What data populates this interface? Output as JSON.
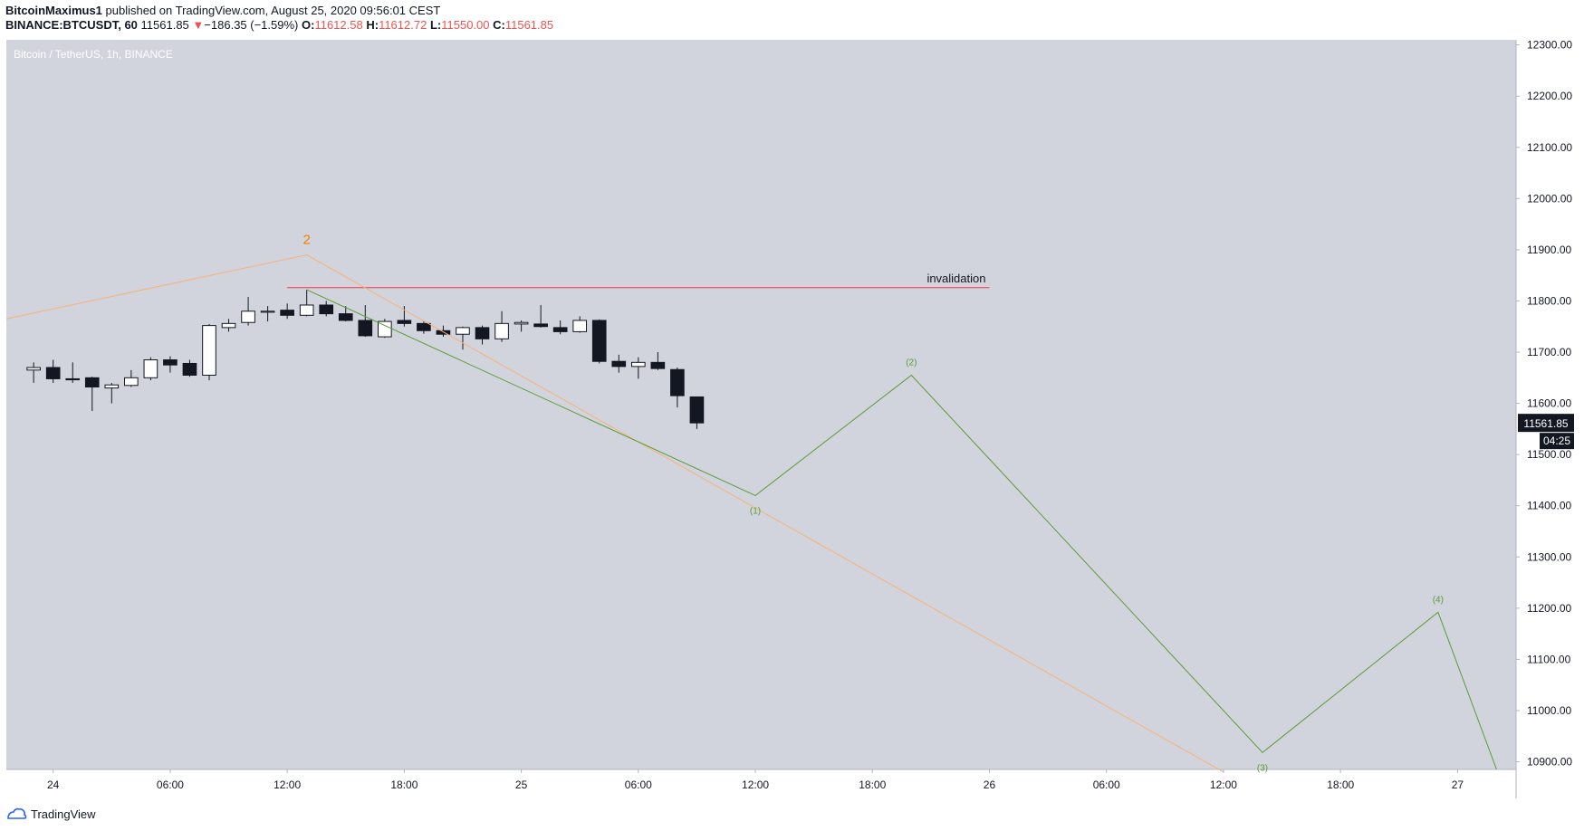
{
  "header": {
    "author": "BitcoinMaximus1",
    "published_text": " published on TradingView.com, August 25, 2020 09:56:01 CEST",
    "symbol": "BINANCE:BTCUSDT, 60",
    "last": "11561.85",
    "change_arrow": "▼",
    "change": "−186.35 (−1.59%)",
    "o_label": "O:",
    "o_value": "11612.58",
    "h_label": "H:",
    "h_value": "11612.72",
    "l_label": "L:",
    "l_value": "11550.00",
    "c_label": "C:",
    "c_value": "11561.85"
  },
  "footer": {
    "brand": "TradingView"
  },
  "chart_data": {
    "type": "candlestick",
    "title": "Bitcoin / TetherUS, 1h, BINANCE",
    "ylim": [
      10885,
      12310
    ],
    "x_range_hours": [
      -2.4,
      75
    ],
    "y_ticks": [
      "12300.00",
      "12200.00",
      "12100.00",
      "12000.00",
      "11900.00",
      "11800.00",
      "11700.00",
      "11600.00",
      "11500.00",
      "11400.00",
      "11300.00",
      "11200.00",
      "11100.00",
      "11000.00",
      "10900.00"
    ],
    "x_ticks": [
      {
        "label": "24",
        "hour": 0
      },
      {
        "label": "06:00",
        "hour": 6
      },
      {
        "label": "12:00",
        "hour": 12
      },
      {
        "label": "18:00",
        "hour": 18
      },
      {
        "label": "25",
        "hour": 24
      },
      {
        "label": "06:00",
        "hour": 30
      },
      {
        "label": "12:00",
        "hour": 36
      },
      {
        "label": "18:00",
        "hour": 42
      },
      {
        "label": "26",
        "hour": 48
      },
      {
        "label": "06:00",
        "hour": 54
      },
      {
        "label": "12:00",
        "hour": 60
      },
      {
        "label": "18:00",
        "hour": 66
      },
      {
        "label": "27",
        "hour": 72
      }
    ],
    "price_label": "11561.85",
    "countdown_label": "04:25",
    "colors": {
      "background": "#d1d4dc",
      "up": "#ffffff",
      "down": "#131722",
      "orange": "#f57c00",
      "green": "#5b9b3a",
      "red": "#f23645"
    },
    "candles": [
      {
        "hour": -1,
        "o": 11665,
        "h": 11680,
        "l": 11640,
        "c": 11670
      },
      {
        "hour": 0,
        "o": 11670,
        "h": 11685,
        "l": 11640,
        "c": 11648
      },
      {
        "hour": 1,
        "o": 11648,
        "h": 11680,
        "l": 11640,
        "c": 11646
      },
      {
        "hour": 2,
        "o": 11650,
        "h": 11652,
        "l": 11585,
        "c": 11632
      },
      {
        "hour": 3,
        "o": 11630,
        "h": 11640,
        "l": 11600,
        "c": 11636
      },
      {
        "hour": 4,
        "o": 11635,
        "h": 11665,
        "l": 11632,
        "c": 11650
      },
      {
        "hour": 5,
        "o": 11650,
        "h": 11690,
        "l": 11645,
        "c": 11685
      },
      {
        "hour": 6,
        "o": 11685,
        "h": 11692,
        "l": 11660,
        "c": 11675
      },
      {
        "hour": 7,
        "o": 11678,
        "h": 11685,
        "l": 11652,
        "c": 11655
      },
      {
        "hour": 8,
        "o": 11655,
        "h": 11755,
        "l": 11645,
        "c": 11752
      },
      {
        "hour": 9,
        "o": 11748,
        "h": 11765,
        "l": 11740,
        "c": 11756
      },
      {
        "hour": 10,
        "o": 11758,
        "h": 11808,
        "l": 11752,
        "c": 11780
      },
      {
        "hour": 11,
        "o": 11778,
        "h": 11790,
        "l": 11760,
        "c": 11780
      },
      {
        "hour": 12,
        "o": 11782,
        "h": 11795,
        "l": 11765,
        "c": 11772
      },
      {
        "hour": 13,
        "o": 11772,
        "h": 11822,
        "l": 11770,
        "c": 11792
      },
      {
        "hour": 14,
        "o": 11792,
        "h": 11800,
        "l": 11770,
        "c": 11775
      },
      {
        "hour": 15,
        "o": 11775,
        "h": 11790,
        "l": 11760,
        "c": 11762
      },
      {
        "hour": 16,
        "o": 11762,
        "h": 11792,
        "l": 11730,
        "c": 11732
      },
      {
        "hour": 17,
        "o": 11730,
        "h": 11765,
        "l": 11728,
        "c": 11760
      },
      {
        "hour": 18,
        "o": 11762,
        "h": 11790,
        "l": 11750,
        "c": 11756
      },
      {
        "hour": 19,
        "o": 11756,
        "h": 11760,
        "l": 11736,
        "c": 11742
      },
      {
        "hour": 20,
        "o": 11742,
        "h": 11752,
        "l": 11730,
        "c": 11735
      },
      {
        "hour": 21,
        "o": 11735,
        "h": 11750,
        "l": 11705,
        "c": 11748
      },
      {
        "hour": 22,
        "o": 11748,
        "h": 11752,
        "l": 11715,
        "c": 11726
      },
      {
        "hour": 23,
        "o": 11726,
        "h": 11780,
        "l": 11720,
        "c": 11756
      },
      {
        "hour": 24,
        "o": 11755,
        "h": 11762,
        "l": 11740,
        "c": 11758
      },
      {
        "hour": 25,
        "o": 11755,
        "h": 11792,
        "l": 11748,
        "c": 11750
      },
      {
        "hour": 26,
        "o": 11748,
        "h": 11762,
        "l": 11735,
        "c": 11740
      },
      {
        "hour": 27,
        "o": 11740,
        "h": 11770,
        "l": 11738,
        "c": 11762
      },
      {
        "hour": 28,
        "o": 11762,
        "h": 11764,
        "l": 11678,
        "c": 11682
      },
      {
        "hour": 29,
        "o": 11682,
        "h": 11695,
        "l": 11660,
        "c": 11672
      },
      {
        "hour": 30,
        "o": 11672,
        "h": 11690,
        "l": 11648,
        "c": 11680
      },
      {
        "hour": 31,
        "o": 11680,
        "h": 11700,
        "l": 11665,
        "c": 11668
      },
      {
        "hour": 32,
        "o": 11666,
        "h": 11670,
        "l": 11592,
        "c": 11615
      },
      {
        "hour": 33,
        "o": 11612.58,
        "h": 11612.72,
        "l": 11550.0,
        "c": 11561.85
      }
    ],
    "invalidation": {
      "label": "invalidation",
      "value": 11826,
      "from_hour": 12,
      "to_hour": 48
    },
    "orange_path": {
      "label": "2",
      "label_at_index": 1,
      "points": [
        {
          "hour": -2.4,
          "y": 11765
        },
        {
          "hour": 13,
          "y": 11890
        },
        {
          "hour": 60,
          "y": 10880
        }
      ]
    },
    "green_path": {
      "points": [
        {
          "hour": 13,
          "y": 11822,
          "label": ""
        },
        {
          "hour": 36,
          "y": 11420,
          "label": "(1)"
        },
        {
          "hour": 44,
          "y": 11655,
          "label": "(2)"
        },
        {
          "hour": 62,
          "y": 10918,
          "label": "(3)"
        },
        {
          "hour": 71,
          "y": 11192,
          "label": "(4)"
        },
        {
          "hour": 74,
          "y": 10885,
          "label": ""
        }
      ]
    }
  }
}
